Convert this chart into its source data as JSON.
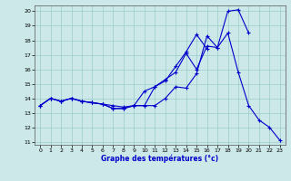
{
  "xlabel": "Graphe des températures (°c)",
  "xlim": [
    -0.5,
    23.5
  ],
  "ylim": [
    10.8,
    20.4
  ],
  "yticks": [
    11,
    12,
    13,
    14,
    15,
    16,
    17,
    18,
    19,
    20
  ],
  "xticks": [
    0,
    1,
    2,
    3,
    4,
    5,
    6,
    7,
    8,
    9,
    10,
    11,
    12,
    13,
    14,
    15,
    16,
    17,
    18,
    19,
    20,
    21,
    22,
    23
  ],
  "bg_color": "#cce8e8",
  "grid_color": "#99cccc",
  "line_color": "#0000cc",
  "line1_x": [
    0,
    1,
    2,
    3,
    4,
    5,
    6,
    7,
    8,
    9,
    10,
    11,
    12,
    13,
    14,
    15,
    16,
    17,
    18,
    19,
    20,
    21,
    22,
    23
  ],
  "line1_y": [
    13.5,
    14.0,
    13.8,
    14.0,
    13.8,
    13.7,
    13.6,
    13.5,
    13.4,
    13.5,
    14.5,
    14.8,
    15.3,
    15.8,
    17.1,
    16.0,
    17.6,
    17.5,
    18.5,
    15.8,
    13.5,
    12.5,
    12.0,
    11.1
  ],
  "line2_x": [
    0,
    1,
    2,
    3,
    4,
    5,
    6,
    7,
    8,
    9,
    10,
    11,
    12,
    13,
    14,
    15,
    16,
    17,
    18,
    19,
    20
  ],
  "line2_y": [
    13.5,
    14.0,
    13.8,
    14.0,
    13.8,
    13.7,
    13.6,
    13.3,
    13.3,
    13.5,
    13.5,
    13.5,
    14.0,
    14.8,
    14.7,
    15.7,
    18.3,
    17.5,
    20.0,
    20.1,
    18.5
  ],
  "line3_x": [
    0,
    1,
    2,
    3,
    4,
    5,
    6,
    7,
    8,
    9,
    10,
    11,
    12,
    13,
    14,
    15,
    16
  ],
  "line3_y": [
    13.5,
    14.0,
    13.8,
    14.0,
    13.8,
    13.7,
    13.6,
    13.3,
    13.3,
    13.5,
    13.5,
    14.8,
    15.2,
    16.2,
    17.2,
    18.4,
    17.4
  ]
}
